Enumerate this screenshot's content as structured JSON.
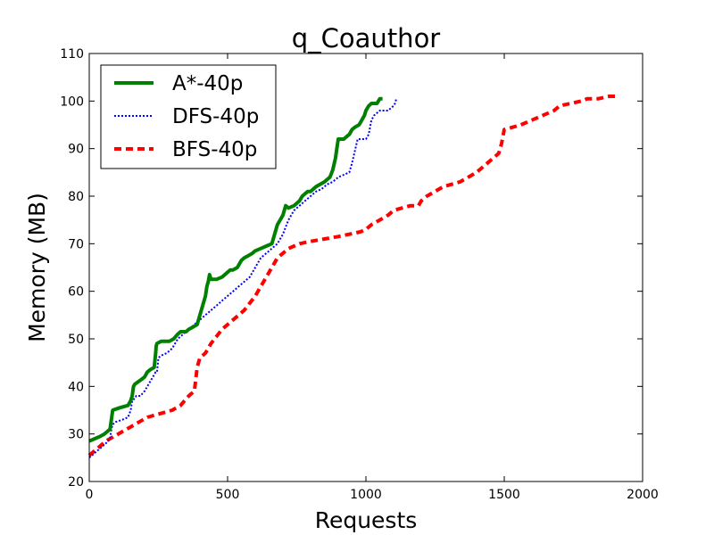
{
  "chart_data": {
    "type": "line",
    "title": "q_Coauthor",
    "xlabel": "Requests",
    "ylabel": "Memory (MB)",
    "xlim": [
      0,
      2000
    ],
    "ylim": [
      20,
      110
    ],
    "xticks": [
      "0",
      "500",
      "1000",
      "1500",
      "2000"
    ],
    "yticks": [
      "20",
      "30",
      "40",
      "50",
      "60",
      "70",
      "80",
      "90",
      "100",
      "110"
    ],
    "grid": false,
    "legend_position": "top-left",
    "series": [
      {
        "name": "A*-40p",
        "color": "#008000",
        "style": "solid",
        "x": [
          0,
          20,
          40,
          55,
          65,
          75,
          80,
          85,
          110,
          140,
          150,
          155,
          160,
          165,
          190,
          200,
          210,
          220,
          235,
          240,
          242,
          245,
          260,
          290,
          305,
          320,
          330,
          340,
          350,
          360,
          375,
          390,
          400,
          410,
          420,
          425,
          430,
          435,
          440,
          445,
          460,
          480,
          500,
          510,
          520,
          535,
          550,
          560,
          575,
          590,
          600,
          620,
          640,
          660,
          670,
          680,
          690,
          700,
          710,
          720,
          740,
          760,
          770,
          780,
          790,
          800,
          820,
          850,
          860,
          870,
          880,
          890,
          895,
          900,
          910,
          920,
          930,
          940,
          950,
          960,
          975,
          985,
          990,
          995,
          1000,
          1010,
          1020,
          1030,
          1040,
          1050,
          1060
        ],
        "y": [
          28.5,
          29,
          29.5,
          30,
          30.5,
          31,
          33,
          35,
          35.5,
          36,
          37,
          38,
          40,
          40.5,
          41.5,
          42,
          43,
          43.5,
          44,
          47,
          48.5,
          49,
          49.5,
          49.5,
          50,
          51,
          51.5,
          51.5,
          51.5,
          52,
          52.5,
          53,
          55,
          57,
          59,
          61,
          62,
          63.5,
          62.5,
          62.5,
          62.5,
          63,
          64,
          64.5,
          64.5,
          65,
          66.5,
          67,
          67.5,
          68,
          68.5,
          69,
          69.5,
          70,
          72,
          74,
          75,
          76,
          78,
          77.5,
          78,
          79,
          80,
          80.5,
          81,
          81,
          82,
          83,
          83.5,
          84,
          85.5,
          88,
          90,
          92,
          92,
          92,
          92.5,
          93,
          94,
          94.5,
          95,
          96,
          96.5,
          97,
          98,
          99,
          99.5,
          99.5,
          99.5,
          100.5,
          100.5
        ]
      },
      {
        "name": "DFS-40p",
        "color": "#0000ff",
        "style": "dotted",
        "x": [
          0,
          20,
          40,
          60,
          75,
          80,
          85,
          95,
          120,
          140,
          150,
          155,
          165,
          170,
          185,
          200,
          210,
          230,
          240,
          245,
          250,
          260,
          280,
          300,
          310,
          320,
          330,
          340,
          350,
          360,
          380,
          400,
          420,
          440,
          460,
          480,
          500,
          520,
          540,
          560,
          580,
          600,
          620,
          640,
          660,
          680,
          700,
          720,
          740,
          760,
          780,
          800,
          820,
          840,
          860,
          880,
          900,
          920,
          940,
          950,
          960,
          970,
          980,
          990,
          1000,
          1010,
          1020,
          1030,
          1040,
          1050,
          1060,
          1070,
          1080,
          1090,
          1100,
          1105,
          1110
        ],
        "y": [
          25,
          26,
          27,
          28,
          29,
          31,
          32,
          32.5,
          33,
          33.5,
          35,
          37,
          37.5,
          38,
          38,
          39,
          40,
          42,
          43,
          43,
          46,
          46.5,
          47,
          48,
          49,
          50,
          50.5,
          51,
          51.5,
          52,
          53,
          54,
          55,
          56,
          57,
          58,
          59,
          60,
          61,
          62,
          63,
          65,
          67,
          68,
          69,
          70,
          72,
          75,
          77,
          78,
          79,
          80,
          81,
          81.5,
          82.5,
          83,
          84,
          84.5,
          85,
          87,
          89.5,
          92,
          92,
          92,
          92,
          93,
          96,
          97,
          97.5,
          98,
          98,
          98,
          98,
          98.5,
          99,
          99.5,
          100.5
        ]
      },
      {
        "name": "BFS-40p",
        "color": "#ff0000",
        "style": "dashed",
        "x": [
          0,
          30,
          60,
          90,
          120,
          150,
          180,
          210,
          240,
          270,
          300,
          330,
          345,
          360,
          370,
          380,
          390,
          400,
          420,
          440,
          460,
          480,
          500,
          520,
          540,
          560,
          580,
          600,
          620,
          640,
          660,
          680,
          700,
          720,
          760,
          800,
          850,
          900,
          940,
          980,
          1000,
          1020,
          1050,
          1080,
          1100,
          1130,
          1160,
          1190,
          1200,
          1220,
          1250,
          1280,
          1310,
          1340,
          1370,
          1400,
          1420,
          1440,
          1460,
          1480,
          1490,
          1500,
          1530,
          1560,
          1600,
          1640,
          1680,
          1700,
          1740,
          1780,
          1800,
          1840,
          1880,
          1900
        ],
        "y": [
          25.5,
          27,
          28.5,
          29.5,
          30.5,
          31.5,
          32.5,
          33.5,
          34,
          34.5,
          35,
          36,
          37,
          38,
          38.5,
          39,
          44,
          46,
          47,
          49,
          50.5,
          52,
          53,
          54,
          55,
          56,
          57.5,
          59,
          61,
          63,
          65,
          67,
          68,
          69,
          70,
          70.5,
          71,
          71.5,
          72,
          72.5,
          73,
          74,
          75,
          76,
          77,
          77.5,
          78,
          78,
          79,
          80,
          81,
          82,
          82.5,
          83,
          84,
          85,
          86,
          87,
          88,
          89,
          91,
          94,
          94.5,
          95,
          96,
          97,
          98,
          99,
          99.5,
          100,
          100.5,
          100.5,
          101,
          101
        ]
      }
    ]
  }
}
